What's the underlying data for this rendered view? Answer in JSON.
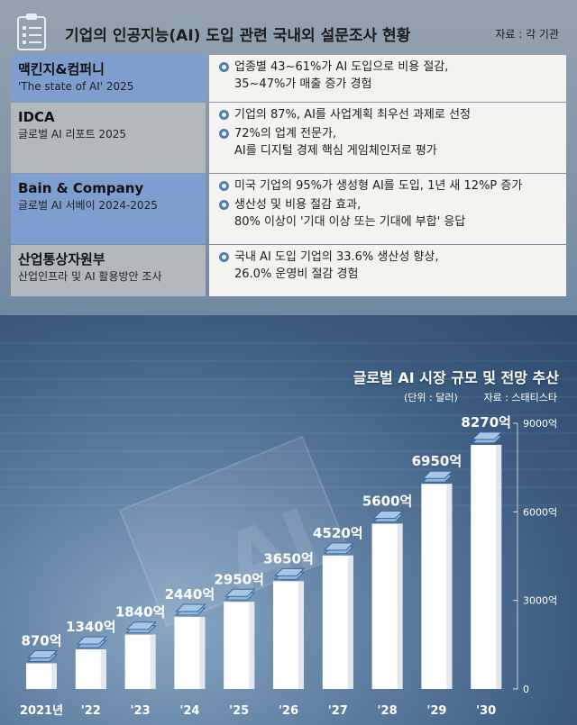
{
  "title": "기업의 인공지능(AI) 도입 관련 국내외 설문조사 현황",
  "source_top": "자료 : 각 기관",
  "rows": [
    {
      "name": "맥킨지&컴퍼니",
      "sub": "'The state of AI' 2025",
      "bullets": [
        [
          "업종별 43~61%가 AI 도입으로 비용 절감,",
          "35~47%가 매출 증가 경험"
        ]
      ]
    },
    {
      "name": "IDCA",
      "sub": "글로벌 AI 리포트 2025",
      "bullets": [
        [
          "기업의 87%, AI를 사업계획 최우선 과제로 선정"
        ],
        [
          "72%의 업계 전문가,",
          "AI를 디지털 경제 핵심 게임체인저로 평가"
        ]
      ]
    },
    {
      "name": "Bain & Company",
      "sub": "글로벌 AI 서베이 2024-2025",
      "bullets": [
        [
          "미국 기업의 95%가 생성형 AI를 도입, 1년 새 12%P 증가"
        ],
        [
          "생산성 및 비용 절감 효과,",
          "80% 이상이 '기대 이상 또는 기대에 부합' 응답"
        ]
      ]
    },
    {
      "name": "산업통상자원부",
      "sub": "산업인프라 및 AI 활용방안 조사",
      "bullets": [
        [
          "국내 AI 도입 기업의 33.6% 생산성 향상,",
          "26.0% 운영비 절감 경험"
        ]
      ]
    }
  ],
  "chart_data": {
    "type": "bar",
    "title": "글로벌 AI 시장 규모 및 전망 추산",
    "unit": "(단위 : 달러)",
    "source": "자료 : 스태티스타",
    "categories": [
      "2021년",
      "'22",
      "'23",
      "'24",
      "'25",
      "'26",
      "'27",
      "'28",
      "'29",
      "'30"
    ],
    "values": [
      870,
      1340,
      1840,
      2440,
      2950,
      3650,
      4520,
      5600,
      6950,
      8270
    ],
    "value_labels": [
      "870억",
      "1340억",
      "1840억",
      "2440억",
      "2950억",
      "3650억",
      "4520억",
      "5600억",
      "6950억",
      "8270억"
    ],
    "yticks": [
      0,
      3000,
      6000,
      9000
    ],
    "ytick_labels": [
      "0",
      "3000억",
      "6000억",
      "9000억"
    ],
    "ylim": [
      0,
      9000
    ],
    "colors": {
      "bar": "#ffffff",
      "coin": "#8fb6dc",
      "text": "#ffffff"
    }
  }
}
